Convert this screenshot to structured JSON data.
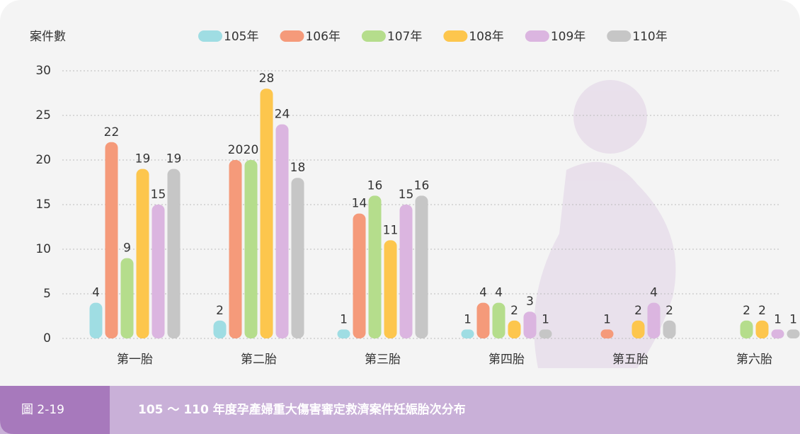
{
  "chart_data": {
    "type": "bar",
    "y_label": "案件數",
    "categories": [
      "第一胎",
      "第二胎",
      "第三胎",
      "第四胎",
      "第五胎",
      "第六胎"
    ],
    "series": [
      {
        "name": "105年",
        "color": "#9fdde3",
        "values": [
          4,
          2,
          1,
          1,
          null,
          null
        ]
      },
      {
        "name": "106年",
        "color": "#f59a7a",
        "values": [
          22,
          20,
          14,
          4,
          1,
          null
        ]
      },
      {
        "name": "107年",
        "color": "#b5dd8c",
        "values": [
          9,
          20,
          16,
          4,
          null,
          2
        ]
      },
      {
        "name": "108年",
        "color": "#fdc64d",
        "values": [
          19,
          28,
          11,
          2,
          2,
          2
        ]
      },
      {
        "name": "109年",
        "color": "#dbb5e0",
        "values": [
          15,
          24,
          15,
          3,
          4,
          1
        ]
      },
      {
        "name": "110年",
        "color": "#c6c6c6",
        "values": [
          19,
          18,
          16,
          1,
          2,
          1
        ]
      }
    ],
    "ylim": [
      0,
      30
    ],
    "yticks": [
      0,
      5,
      10,
      15,
      20,
      25,
      30
    ],
    "grid": true,
    "figure_label": "圖 2-19",
    "caption": "105 ～ 110 年度孕產婦重大傷害審定救濟案件妊娠胎次分布"
  }
}
